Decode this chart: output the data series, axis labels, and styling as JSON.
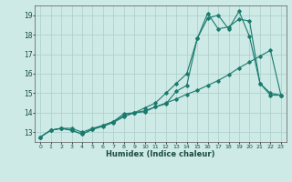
{
  "title": "",
  "xlabel": "Humidex (Indice chaleur)",
  "bg_color": "#ceeae6",
  "grid_color": "#aaccca",
  "line_color": "#1a7a6e",
  "xlim": [
    -0.5,
    23.5
  ],
  "ylim": [
    12.5,
    19.5
  ],
  "xticks": [
    0,
    1,
    2,
    3,
    4,
    5,
    6,
    7,
    8,
    9,
    10,
    11,
    12,
    13,
    14,
    15,
    16,
    17,
    18,
    19,
    20,
    21,
    22,
    23
  ],
  "yticks": [
    13,
    14,
    15,
    16,
    17,
    18,
    19
  ],
  "line1_x": [
    0,
    1,
    2,
    3,
    4,
    5,
    6,
    7,
    8,
    9,
    10,
    11,
    12,
    13,
    14,
    15,
    16,
    17,
    18,
    19,
    20,
    21,
    22,
    23
  ],
  "line1_y": [
    12.75,
    13.1,
    13.2,
    13.1,
    12.9,
    13.15,
    13.3,
    13.5,
    13.8,
    14.0,
    14.05,
    14.3,
    14.45,
    15.1,
    15.4,
    17.8,
    18.85,
    19.0,
    18.3,
    19.2,
    17.9,
    15.5,
    15.0,
    14.9
  ],
  "line2_x": [
    0,
    1,
    2,
    3,
    4,
    5,
    6,
    7,
    8,
    9,
    10,
    11,
    12,
    13,
    14,
    15,
    16,
    17,
    18,
    19,
    20,
    21,
    22,
    23
  ],
  "line2_y": [
    12.75,
    13.1,
    13.2,
    13.1,
    12.9,
    13.15,
    13.35,
    13.55,
    13.95,
    14.0,
    14.25,
    14.5,
    15.0,
    15.5,
    16.0,
    17.8,
    19.1,
    18.3,
    18.4,
    18.8,
    18.7,
    15.5,
    14.9,
    14.9
  ],
  "line3_x": [
    0,
    1,
    2,
    3,
    4,
    5,
    6,
    7,
    8,
    9,
    10,
    11,
    12,
    13,
    14,
    15,
    16,
    17,
    18,
    19,
    20,
    21,
    22,
    23
  ],
  "line3_y": [
    12.75,
    13.1,
    13.2,
    13.2,
    13.0,
    13.2,
    13.35,
    13.55,
    13.85,
    14.0,
    14.1,
    14.3,
    14.5,
    14.7,
    14.95,
    15.15,
    15.4,
    15.65,
    15.95,
    16.3,
    16.6,
    16.9,
    17.2,
    14.9
  ]
}
